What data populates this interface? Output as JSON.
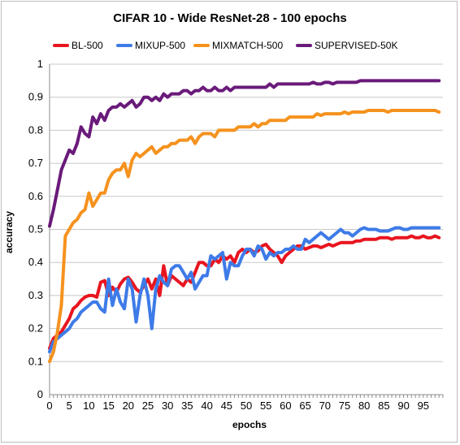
{
  "chart_data": {
    "type": "line",
    "title": "CIFAR 10 - Wide ResNet-28 - 100 epochs",
    "xlabel": "epochs",
    "ylabel": "accuracy",
    "xlim": [
      0,
      100
    ],
    "ylim": [
      0,
      1
    ],
    "xticks": [
      0,
      5,
      10,
      15,
      20,
      25,
      30,
      35,
      40,
      45,
      50,
      55,
      60,
      65,
      70,
      75,
      80,
      85,
      90,
      95
    ],
    "xtick_labels": [
      "0",
      "5",
      "10",
      "15",
      "20",
      "25",
      "30",
      "35",
      "40",
      "45",
      "50",
      "55",
      "60",
      "65",
      "70",
      "75",
      "80",
      "85",
      "90",
      "95"
    ],
    "yticks": [
      0,
      0.1,
      0.2,
      0.3,
      0.4,
      0.5,
      0.6,
      0.7,
      0.8,
      0.9,
      1
    ],
    "ytick_labels": [
      "0",
      "0.1",
      "0.2",
      "0.3",
      "0.4",
      "0.5",
      "0.6",
      "0.7",
      "0.8",
      "0.9",
      "1"
    ],
    "grid": "horizontal",
    "legend_position": "top",
    "series": [
      {
        "name": "BL-500",
        "color": "#e8151f",
        "x": [
          0,
          1,
          2,
          3,
          4,
          5,
          6,
          7,
          8,
          9,
          10,
          11,
          12,
          13,
          14,
          15,
          16,
          17,
          18,
          19,
          20,
          21,
          22,
          23,
          24,
          25,
          26,
          27,
          28,
          29,
          30,
          31,
          32,
          33,
          34,
          35,
          36,
          37,
          38,
          39,
          40,
          41,
          42,
          43,
          44,
          45,
          46,
          47,
          48,
          49,
          50,
          51,
          52,
          53,
          54,
          55,
          56,
          57,
          58,
          59,
          60,
          61,
          62,
          63,
          64,
          65,
          66,
          67,
          68,
          69,
          70,
          71,
          72,
          73,
          74,
          75,
          76,
          77,
          78,
          79,
          80,
          81,
          82,
          83,
          84,
          85,
          86,
          87,
          88,
          89,
          90,
          91,
          92,
          93,
          94,
          95,
          96,
          97,
          98,
          99
        ],
        "y": [
          0.14,
          0.17,
          0.18,
          0.19,
          0.21,
          0.23,
          0.26,
          0.27,
          0.285,
          0.295,
          0.3,
          0.3,
          0.295,
          0.34,
          0.345,
          0.3,
          0.325,
          0.31,
          0.335,
          0.35,
          0.355,
          0.34,
          0.32,
          0.31,
          0.33,
          0.35,
          0.32,
          0.35,
          0.3,
          0.39,
          0.33,
          0.36,
          0.35,
          0.34,
          0.33,
          0.35,
          0.34,
          0.37,
          0.4,
          0.4,
          0.39,
          0.39,
          0.41,
          0.4,
          0.42,
          0.41,
          0.42,
          0.4,
          0.43,
          0.44,
          0.43,
          0.44,
          0.43,
          0.435,
          0.45,
          0.455,
          0.44,
          0.43,
          0.42,
          0.4,
          0.42,
          0.43,
          0.44,
          0.45,
          0.45,
          0.44,
          0.445,
          0.45,
          0.45,
          0.445,
          0.45,
          0.455,
          0.45,
          0.455,
          0.46,
          0.46,
          0.46,
          0.46,
          0.465,
          0.465,
          0.47,
          0.47,
          0.47,
          0.47,
          0.475,
          0.475,
          0.475,
          0.47,
          0.475,
          0.475,
          0.475,
          0.475,
          0.48,
          0.475,
          0.475,
          0.48,
          0.475,
          0.475,
          0.48,
          0.475
        ]
      },
      {
        "name": "MIXUP-500",
        "color": "#3e7be8",
        "x": [
          0,
          1,
          2,
          3,
          4,
          5,
          6,
          7,
          8,
          9,
          10,
          11,
          12,
          13,
          14,
          15,
          16,
          17,
          18,
          19,
          20,
          21,
          22,
          23,
          24,
          25,
          26,
          27,
          28,
          29,
          30,
          31,
          32,
          33,
          34,
          35,
          36,
          37,
          38,
          39,
          40,
          41,
          42,
          43,
          44,
          45,
          46,
          47,
          48,
          49,
          50,
          51,
          52,
          53,
          54,
          55,
          56,
          57,
          58,
          59,
          60,
          61,
          62,
          63,
          64,
          65,
          66,
          67,
          68,
          69,
          70,
          71,
          72,
          73,
          74,
          75,
          76,
          77,
          78,
          79,
          80,
          81,
          82,
          83,
          84,
          85,
          86,
          87,
          88,
          89,
          90,
          91,
          92,
          93,
          94,
          95,
          96,
          97,
          98,
          99
        ],
        "y": [
          0.13,
          0.16,
          0.17,
          0.18,
          0.19,
          0.2,
          0.22,
          0.23,
          0.25,
          0.26,
          0.27,
          0.28,
          0.28,
          0.26,
          0.25,
          0.35,
          0.27,
          0.32,
          0.28,
          0.26,
          0.35,
          0.32,
          0.22,
          0.3,
          0.35,
          0.3,
          0.2,
          0.32,
          0.36,
          0.34,
          0.33,
          0.38,
          0.39,
          0.39,
          0.37,
          0.35,
          0.37,
          0.32,
          0.34,
          0.36,
          0.36,
          0.42,
          0.41,
          0.42,
          0.43,
          0.35,
          0.4,
          0.39,
          0.39,
          0.42,
          0.44,
          0.44,
          0.42,
          0.45,
          0.44,
          0.41,
          0.43,
          0.42,
          0.43,
          0.43,
          0.44,
          0.44,
          0.45,
          0.44,
          0.44,
          0.47,
          0.46,
          0.47,
          0.48,
          0.49,
          0.48,
          0.47,
          0.48,
          0.49,
          0.5,
          0.49,
          0.49,
          0.48,
          0.49,
          0.5,
          0.505,
          0.5,
          0.5,
          0.5,
          0.495,
          0.495,
          0.495,
          0.5,
          0.505,
          0.505,
          0.5,
          0.5,
          0.505,
          0.505,
          0.505,
          0.505,
          0.505,
          0.505,
          0.505,
          0.505
        ]
      },
      {
        "name": "MIXMATCH-500",
        "color": "#f5921e",
        "x": [
          0,
          1,
          2,
          3,
          4,
          5,
          6,
          7,
          8,
          9,
          10,
          11,
          12,
          13,
          14,
          15,
          16,
          17,
          18,
          19,
          20,
          21,
          22,
          23,
          24,
          25,
          26,
          27,
          28,
          29,
          30,
          31,
          32,
          33,
          34,
          35,
          36,
          37,
          38,
          39,
          40,
          41,
          42,
          43,
          44,
          45,
          46,
          47,
          48,
          49,
          50,
          51,
          52,
          53,
          54,
          55,
          56,
          57,
          58,
          59,
          60,
          61,
          62,
          63,
          64,
          65,
          66,
          67,
          68,
          69,
          70,
          71,
          72,
          73,
          74,
          75,
          76,
          77,
          78,
          79,
          80,
          81,
          82,
          83,
          84,
          85,
          86,
          87,
          88,
          89,
          90,
          91,
          92,
          93,
          94,
          95,
          96,
          97,
          98,
          99
        ],
        "y": [
          0.1,
          0.13,
          0.19,
          0.27,
          0.48,
          0.5,
          0.52,
          0.53,
          0.55,
          0.56,
          0.61,
          0.57,
          0.59,
          0.61,
          0.61,
          0.65,
          0.67,
          0.68,
          0.68,
          0.7,
          0.66,
          0.71,
          0.73,
          0.72,
          0.73,
          0.74,
          0.75,
          0.73,
          0.74,
          0.75,
          0.75,
          0.76,
          0.76,
          0.77,
          0.77,
          0.77,
          0.78,
          0.76,
          0.78,
          0.79,
          0.79,
          0.79,
          0.78,
          0.8,
          0.8,
          0.8,
          0.8,
          0.8,
          0.81,
          0.81,
          0.81,
          0.81,
          0.82,
          0.81,
          0.82,
          0.82,
          0.83,
          0.83,
          0.83,
          0.83,
          0.83,
          0.84,
          0.84,
          0.84,
          0.84,
          0.84,
          0.84,
          0.84,
          0.85,
          0.845,
          0.85,
          0.85,
          0.85,
          0.85,
          0.85,
          0.855,
          0.85,
          0.855,
          0.855,
          0.855,
          0.855,
          0.86,
          0.86,
          0.86,
          0.86,
          0.86,
          0.855,
          0.86,
          0.86,
          0.86,
          0.86,
          0.86,
          0.86,
          0.86,
          0.86,
          0.86,
          0.86,
          0.86,
          0.86,
          0.855
        ]
      },
      {
        "name": "SUPERVISED-50K",
        "color": "#6a1a7a",
        "x": [
          0,
          1,
          2,
          3,
          4,
          5,
          6,
          7,
          8,
          9,
          10,
          11,
          12,
          13,
          14,
          15,
          16,
          17,
          18,
          19,
          20,
          21,
          22,
          23,
          24,
          25,
          26,
          27,
          28,
          29,
          30,
          31,
          32,
          33,
          34,
          35,
          36,
          37,
          38,
          39,
          40,
          41,
          42,
          43,
          44,
          45,
          46,
          47,
          48,
          49,
          50,
          51,
          52,
          53,
          54,
          55,
          56,
          57,
          58,
          59,
          60,
          61,
          62,
          63,
          64,
          65,
          66,
          67,
          68,
          69,
          70,
          71,
          72,
          73,
          74,
          75,
          76,
          77,
          78,
          79,
          80,
          81,
          82,
          83,
          84,
          85,
          86,
          87,
          88,
          89,
          90,
          91,
          92,
          93,
          94,
          95,
          96,
          97,
          98,
          99
        ],
        "y": [
          0.51,
          0.56,
          0.62,
          0.68,
          0.71,
          0.74,
          0.73,
          0.76,
          0.81,
          0.79,
          0.78,
          0.84,
          0.82,
          0.85,
          0.83,
          0.86,
          0.87,
          0.87,
          0.88,
          0.87,
          0.88,
          0.89,
          0.87,
          0.88,
          0.9,
          0.9,
          0.89,
          0.9,
          0.89,
          0.91,
          0.9,
          0.91,
          0.91,
          0.91,
          0.92,
          0.92,
          0.91,
          0.92,
          0.92,
          0.93,
          0.92,
          0.92,
          0.93,
          0.92,
          0.92,
          0.93,
          0.92,
          0.93,
          0.93,
          0.93,
          0.93,
          0.93,
          0.93,
          0.93,
          0.93,
          0.93,
          0.94,
          0.93,
          0.94,
          0.94,
          0.94,
          0.94,
          0.94,
          0.94,
          0.94,
          0.94,
          0.94,
          0.945,
          0.94,
          0.94,
          0.945,
          0.945,
          0.94,
          0.945,
          0.945,
          0.945,
          0.945,
          0.945,
          0.945,
          0.95,
          0.95,
          0.95,
          0.95,
          0.95,
          0.95,
          0.95,
          0.95,
          0.95,
          0.95,
          0.95,
          0.95,
          0.95,
          0.95,
          0.95,
          0.95,
          0.95,
          0.95,
          0.95,
          0.95,
          0.95
        ]
      }
    ]
  }
}
